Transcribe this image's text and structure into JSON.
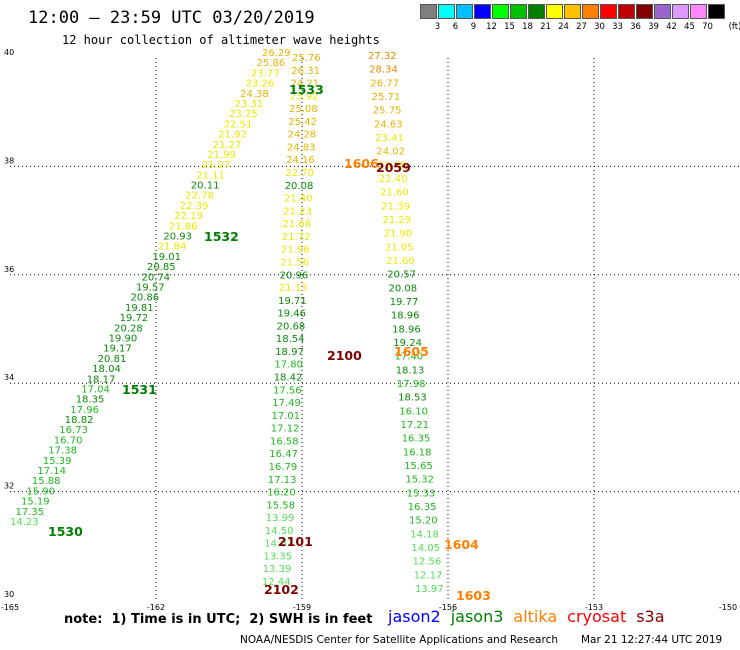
{
  "header": {
    "title": "12:00 – 23:59 UTC 03/20/2019",
    "subtitle": "12 hour collection of altimeter wave heights"
  },
  "colorbar": {
    "unit": "(ft)",
    "bins": [
      {
        "label": "3",
        "color": "#7f7f7f"
      },
      {
        "label": "6",
        "color": "#00ffff"
      },
      {
        "label": "9",
        "color": "#00bfff"
      },
      {
        "label": "12",
        "color": "#0000ff"
      },
      {
        "label": "15",
        "color": "#00ff00"
      },
      {
        "label": "18",
        "color": "#00c000"
      },
      {
        "label": "21",
        "color": "#007f00"
      },
      {
        "label": "24",
        "color": "#ffff00"
      },
      {
        "label": "27",
        "color": "#ffc000"
      },
      {
        "label": "30",
        "color": "#ff8000"
      },
      {
        "label": "33",
        "color": "#ff0000"
      },
      {
        "label": "36",
        "color": "#c00000"
      },
      {
        "label": "39",
        "color": "#800000"
      },
      {
        "label": "42",
        "color": "#9966cc"
      },
      {
        "label": "45",
        "color": "#dd99ff"
      },
      {
        "label": "70",
        "color": "#ff88ff"
      },
      {
        "label": "",
        "color": "#000000"
      }
    ]
  },
  "axes": {
    "lon_ticks": [
      "-165",
      "-162",
      "-159",
      "-156",
      "-153",
      "-150"
    ],
    "lat_ticks": [
      "30",
      "32",
      "34",
      "36",
      "38",
      "40"
    ]
  },
  "map_data": {
    "extent": {
      "lon": [
        -165,
        -150
      ],
      "lat": [
        30,
        40
      ]
    },
    "point_values": [
      "14.23",
      "17.35",
      "15.19",
      "15.90",
      "15.88",
      "17.14",
      "15.39",
      "17.38",
      "16.70",
      "16.73",
      "18.82",
      "17.96",
      "18.35",
      "17.04",
      "18.17",
      "18.04",
      "20.81",
      "19.17",
      "19.90",
      "20.28",
      "19.72",
      "19.81",
      "20.86",
      "19.57",
      "20.74",
      "20.85",
      "19.01",
      "21.84",
      "20.93",
      "21.86",
      "22.19",
      "22.39",
      "22.78",
      "20.11",
      "21.11",
      "21.27",
      "21.99",
      "21.27",
      "21.92",
      "22.51",
      "23.25",
      "23.31",
      "24.38",
      "23.26",
      "23.77",
      "25.86",
      "26.29",
      "25.76",
      "26.31",
      "24.21",
      "23.92",
      "25.08",
      "25.42",
      "24.28",
      "24.83",
      "24.16",
      "22.70",
      "20.08",
      "21.40",
      "21.23",
      "21.66",
      "21.72",
      "21.96",
      "21.56",
      "20.96",
      "21.13",
      "19.71",
      "19.46",
      "20.68",
      "18.54",
      "18.97",
      "17.80",
      "18.42",
      "17.56",
      "17.49",
      "17.01",
      "17.12",
      "16.58",
      "16.47",
      "16.79",
      "17.13",
      "16.20",
      "15.58",
      "13.99",
      "14.50",
      "14.07",
      "13.35",
      "13.39",
      "12.44",
      "27.32",
      "28.34",
      "26.77",
      "25.71",
      "25.75",
      "24.63",
      "23.41",
      "24.02",
      "23.78",
      "22.40",
      "21.60",
      "21.39",
      "21.29",
      "21.90",
      "21.05",
      "21.60",
      "20.57",
      "20.08",
      "19.77",
      "18.96",
      "18.96",
      "19.24",
      "17.40",
      "18.13",
      "17.98",
      "18.53",
      "16.10",
      "17.21",
      "16.35",
      "16.18",
      "15.65",
      "15.32",
      "15.33",
      "16.35",
      "15.20",
      "14.18",
      "14.05",
      "12.56",
      "12.17",
      "13.97"
    ],
    "track_labels": [
      {
        "text": "1530",
        "color": "#007f00"
      },
      {
        "text": "1531",
        "color": "#007f00"
      },
      {
        "text": "1532",
        "color": "#007f00"
      },
      {
        "text": "1533",
        "color": "#007f00"
      },
      {
        "text": "1603",
        "color": "#ff8000"
      },
      {
        "text": "1604",
        "color": "#ff8000"
      },
      {
        "text": "1605",
        "color": "#ff8000"
      },
      {
        "text": "1606",
        "color": "#ff8000"
      },
      {
        "text": "2059",
        "color": "#800000"
      },
      {
        "text": "2100",
        "color": "#800000"
      },
      {
        "text": "2101",
        "color": "#800000"
      },
      {
        "text": "2102",
        "color": "#800000"
      }
    ]
  },
  "footer": {
    "note": "note:  1) Time is in UTC;  2) SWH is in feet",
    "satellites": [
      {
        "name": "jason2",
        "color": "#0000ff"
      },
      {
        "name": "jason3",
        "color": "#007f00"
      },
      {
        "name": "altika",
        "color": "#ff8000"
      },
      {
        "name": "cryosat",
        "color": "#ff0000"
      },
      {
        "name": "s3a",
        "color": "#800000"
      }
    ],
    "credit": "NOAA/NESDIS Center for Satellite Applications and Research",
    "timestamp": "Mar 21 12:27:44 UTC 2019"
  }
}
